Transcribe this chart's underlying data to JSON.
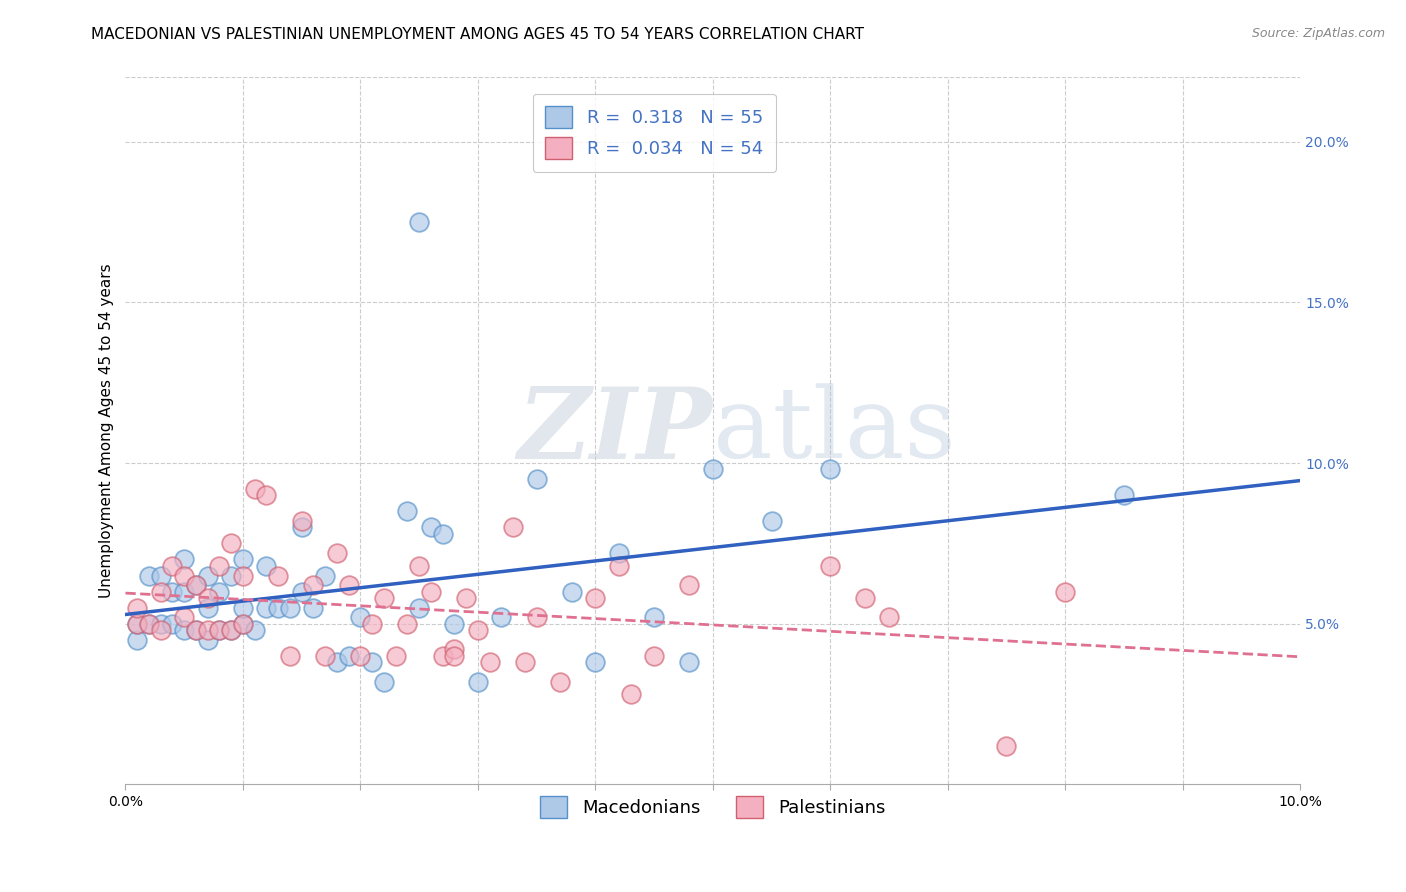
{
  "title": "MACEDONIAN VS PALESTINIAN UNEMPLOYMENT AMONG AGES 45 TO 54 YEARS CORRELATION CHART",
  "source": "Source: ZipAtlas.com",
  "ylabel": "Unemployment Among Ages 45 to 54 years",
  "watermark_zip": "ZIP",
  "watermark_atlas": "atlas",
  "xlim": [
    0.0,
    0.1
  ],
  "ylim": [
    0.0,
    0.22
  ],
  "xticks": [
    0.0,
    0.01,
    0.02,
    0.03,
    0.04,
    0.05,
    0.06,
    0.07,
    0.08,
    0.09,
    0.1
  ],
  "yticks_right": [
    0.05,
    0.1,
    0.15,
    0.2
  ],
  "macedonian_R": 0.318,
  "macedonian_N": 55,
  "palestinian_R": 0.034,
  "palestinian_N": 54,
  "macedonian_color": "#aec8e8",
  "macedonian_edge_color": "#5590c8",
  "palestinian_color": "#f4b0c0",
  "palestinian_edge_color": "#d06070",
  "macedonian_line_color": "#3060c0",
  "palestinian_line_color": "#e07090",
  "macedonian_x": [
    0.001,
    0.001,
    0.002,
    0.002,
    0.003,
    0.003,
    0.004,
    0.004,
    0.005,
    0.005,
    0.005,
    0.006,
    0.006,
    0.007,
    0.007,
    0.007,
    0.008,
    0.008,
    0.009,
    0.009,
    0.01,
    0.01,
    0.01,
    0.011,
    0.012,
    0.012,
    0.013,
    0.014,
    0.015,
    0.015,
    0.016,
    0.017,
    0.018,
    0.019,
    0.02,
    0.021,
    0.022,
    0.024,
    0.025,
    0.026,
    0.027,
    0.028,
    0.03,
    0.032,
    0.035,
    0.038,
    0.04,
    0.042,
    0.045,
    0.048,
    0.05,
    0.055,
    0.06,
    0.085,
    0.025
  ],
  "macedonian_y": [
    0.045,
    0.05,
    0.05,
    0.065,
    0.05,
    0.065,
    0.05,
    0.06,
    0.048,
    0.06,
    0.07,
    0.048,
    0.062,
    0.045,
    0.055,
    0.065,
    0.048,
    0.06,
    0.048,
    0.065,
    0.05,
    0.055,
    0.07,
    0.048,
    0.055,
    0.068,
    0.055,
    0.055,
    0.06,
    0.08,
    0.055,
    0.065,
    0.038,
    0.04,
    0.052,
    0.038,
    0.032,
    0.085,
    0.055,
    0.08,
    0.078,
    0.05,
    0.032,
    0.052,
    0.095,
    0.06,
    0.038,
    0.072,
    0.052,
    0.038,
    0.098,
    0.082,
    0.098,
    0.09,
    0.175
  ],
  "palestinian_x": [
    0.001,
    0.001,
    0.002,
    0.003,
    0.003,
    0.004,
    0.005,
    0.005,
    0.006,
    0.006,
    0.007,
    0.007,
    0.008,
    0.008,
    0.009,
    0.009,
    0.01,
    0.01,
    0.011,
    0.012,
    0.013,
    0.014,
    0.015,
    0.016,
    0.017,
    0.018,
    0.019,
    0.02,
    0.021,
    0.022,
    0.023,
    0.024,
    0.025,
    0.026,
    0.027,
    0.028,
    0.029,
    0.03,
    0.031,
    0.033,
    0.034,
    0.035,
    0.037,
    0.04,
    0.042,
    0.043,
    0.045,
    0.048,
    0.06,
    0.063,
    0.065,
    0.075,
    0.08,
    0.028
  ],
  "palestinian_y": [
    0.05,
    0.055,
    0.05,
    0.048,
    0.06,
    0.068,
    0.052,
    0.065,
    0.048,
    0.062,
    0.048,
    0.058,
    0.048,
    0.068,
    0.048,
    0.075,
    0.05,
    0.065,
    0.092,
    0.09,
    0.065,
    0.04,
    0.082,
    0.062,
    0.04,
    0.072,
    0.062,
    0.04,
    0.05,
    0.058,
    0.04,
    0.05,
    0.068,
    0.06,
    0.04,
    0.042,
    0.058,
    0.048,
    0.038,
    0.08,
    0.038,
    0.052,
    0.032,
    0.058,
    0.068,
    0.028,
    0.04,
    0.062,
    0.068,
    0.058,
    0.052,
    0.012,
    0.06,
    0.04
  ],
  "title_fontsize": 11,
  "axis_label_fontsize": 11,
  "tick_fontsize": 10,
  "legend_fontsize": 13
}
